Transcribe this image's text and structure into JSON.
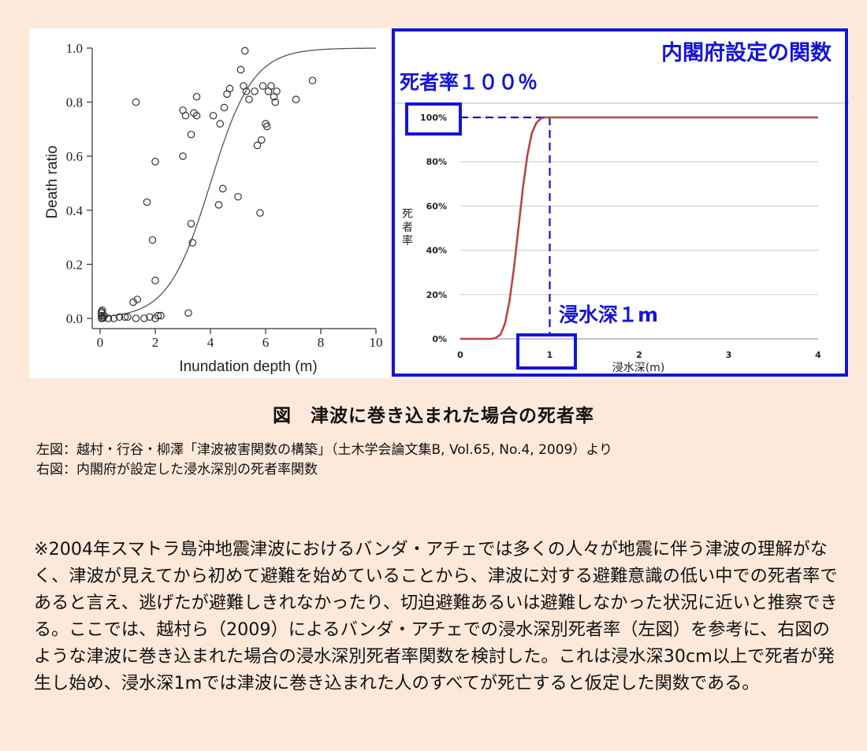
{
  "left_chart": {
    "chart_data": {
      "type": "scatter",
      "xlabel": "Inundation depth (m)",
      "ylabel": "Death ratio",
      "xlim": [
        0,
        10
      ],
      "ylim": [
        0,
        1.0
      ],
      "x_ticks": [
        "0",
        "2",
        "4",
        "6",
        "8",
        "10"
      ],
      "y_ticks": [
        "0.0",
        "0.2",
        "0.4",
        "0.6",
        "0.8",
        "1.0"
      ],
      "grid": false,
      "points": [
        [
          0.05,
          0.0
        ],
        [
          0.05,
          0.01
        ],
        [
          0.05,
          0.02
        ],
        [
          0.05,
          0.025
        ],
        [
          0.08,
          0.03
        ],
        [
          0.1,
          0.0
        ],
        [
          0.12,
          0.005
        ],
        [
          0.15,
          0.01
        ],
        [
          0.3,
          0.0
        ],
        [
          0.5,
          0.0
        ],
        [
          0.7,
          0.005
        ],
        [
          0.9,
          0.005
        ],
        [
          1.0,
          0.005
        ],
        [
          1.3,
          0.0
        ],
        [
          1.6,
          0.0
        ],
        [
          1.8,
          0.005
        ],
        [
          2.0,
          0.0
        ],
        [
          2.1,
          0.01
        ],
        [
          2.2,
          0.01
        ],
        [
          1.2,
          0.06
        ],
        [
          1.35,
          0.07
        ],
        [
          1.3,
          0.8
        ],
        [
          1.7,
          0.43
        ],
        [
          1.9,
          0.29
        ],
        [
          2.0,
          0.14
        ],
        [
          2.0,
          0.58
        ],
        [
          3.0,
          0.6
        ],
        [
          3.0,
          0.77
        ],
        [
          3.1,
          0.75
        ],
        [
          3.2,
          0.02
        ],
        [
          3.3,
          0.35
        ],
        [
          3.35,
          0.28
        ],
        [
          3.3,
          0.68
        ],
        [
          3.4,
          0.76
        ],
        [
          3.5,
          0.82
        ],
        [
          3.5,
          0.75
        ],
        [
          4.1,
          0.75
        ],
        [
          4.3,
          0.42
        ],
        [
          4.35,
          0.72
        ],
        [
          4.45,
          0.48
        ],
        [
          4.5,
          0.78
        ],
        [
          4.6,
          0.83
        ],
        [
          4.7,
          0.85
        ],
        [
          5.0,
          0.45
        ],
        [
          5.1,
          0.92
        ],
        [
          5.2,
          0.86
        ],
        [
          5.25,
          0.99
        ],
        [
          5.3,
          0.84
        ],
        [
          5.4,
          0.81
        ],
        [
          5.6,
          0.84
        ],
        [
          5.7,
          0.64
        ],
        [
          5.8,
          0.39
        ],
        [
          5.85,
          0.66
        ],
        [
          5.9,
          0.86
        ],
        [
          6.0,
          0.72
        ],
        [
          6.05,
          0.71
        ],
        [
          6.1,
          0.84
        ],
        [
          6.2,
          0.86
        ],
        [
          6.3,
          0.82
        ],
        [
          6.35,
          0.8
        ],
        [
          6.4,
          0.84
        ],
        [
          7.1,
          0.81
        ],
        [
          7.7,
          0.88
        ]
      ],
      "fit_curve": {
        "type": "logistic",
        "midpoint": 4.0,
        "steepness": 1.3
      }
    }
  },
  "right_chart": {
    "panel_title": "内閣府設定の関数",
    "annotation_100": "死者率１００％",
    "annotation_1m": "浸水深１m",
    "chart_data": {
      "type": "line",
      "xlabel": "浸水深(m)",
      "ylabel": "死者率",
      "xlim": [
        0,
        4
      ],
      "ylim": [
        0,
        100
      ],
      "x_ticks": [
        "0",
        "1",
        "2",
        "3",
        "4"
      ],
      "y_ticks": [
        "0%",
        "20%",
        "40%",
        "60%",
        "80%",
        "100%"
      ],
      "grid": true,
      "series": [
        {
          "name": "",
          "color": "#b5474a",
          "x": [
            0,
            0.35,
            0.4,
            0.45,
            0.5,
            0.55,
            0.6,
            0.65,
            0.7,
            0.75,
            0.8,
            0.85,
            0.9,
            0.95,
            1.0,
            1.5,
            2.0,
            3.0,
            4.0
          ],
          "y": [
            0,
            0,
            0.5,
            2,
            7,
            17,
            32,
            50,
            68,
            83,
            93,
            97.5,
            99.5,
            100,
            100,
            100,
            100,
            100,
            100
          ]
        }
      ]
    }
  },
  "figure_caption": "図　津波に巻き込まれた場合の死者率",
  "source_left": "左図：越村・行谷・柳澤「津波被害関数の構築」（土木学会論文集B, Vol.65, No.4, 2009）より",
  "source_right": "右図：内閣府が設定した浸水深別の死者率関数",
  "note": "※2004年スマトラ島沖地震津波におけるバンダ・アチェでは多くの人々が地震に伴う津波の理解がなく、津波が見えてから初めて避難を始めていることから、津波に対する避難意識の低い中での死者率であると言え、逃げたが避難しきれなかったり、切迫避難あるいは避難しなかった状況に近いと推察できる。ここでは、越村ら（2009）によるバンダ・アチェでの浸水深別死者率（左図）を参考に、右図のような津波に巻き込まれた場合の浸水深別死者率関数を検討した。これは浸水深30cm以上で死者が発生し始め、浸水深1mでは津波に巻き込まれた人のすべてが死亡すると仮定した関数である。",
  "colors": {
    "background": "#fde9da",
    "panel_border": "#1515d8",
    "annotation_blue": "#1515d8",
    "curve": "#b5474a"
  }
}
